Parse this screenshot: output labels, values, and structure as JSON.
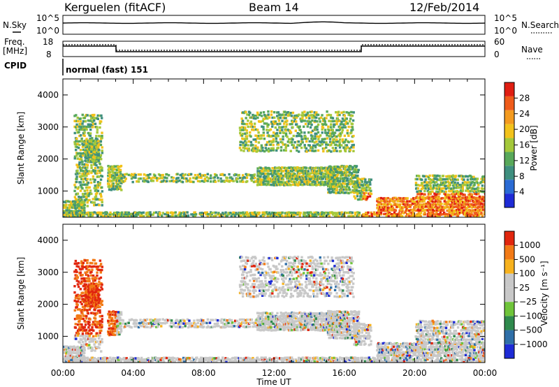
{
  "header": {
    "station": "Kerguelen (fitACF)",
    "beam": "Beam 14",
    "date": "12/Feb/2014"
  },
  "top_panels": {
    "nsky_label": "N.Sky",
    "nsky_left_ticks": [
      "10^5",
      "10^0"
    ],
    "nsearch_label": "N.Search",
    "nsearch_right_ticks": [
      "10^5",
      "10^0"
    ],
    "freq_label": "Freq.",
    "freq_unit": "[MHz]",
    "freq_ticks": [
      "18",
      "8"
    ],
    "nave_label": "Nave",
    "nave_ticks": [
      "60",
      "0"
    ],
    "cpid_label": "CPID",
    "cpid_value": "normal (fast) 151"
  },
  "chart_data": [
    {
      "type": "heatmap",
      "panel": "power",
      "ylabel": "Slant Range [km]",
      "xlabel": "",
      "yticks": [
        "1000",
        "2000",
        "3000",
        "4000"
      ],
      "ylim": [
        180,
        4500
      ],
      "xlim": [
        0,
        24
      ],
      "colorbar": {
        "label": "Power [dB]",
        "ticks": [
          "4",
          "8",
          "12",
          "16",
          "20",
          "24",
          "28"
        ],
        "colors": [
          "#1e2bd6",
          "#2a6bd4",
          "#3f8f7f",
          "#58a85a",
          "#a4c83a",
          "#f2c21b",
          "#f39a1f",
          "#ef5b1a",
          "#e01e12"
        ]
      }
    },
    {
      "type": "heatmap",
      "panel": "velocity",
      "ylabel": "Slant Range [km]",
      "xlabel": "Time UT",
      "yticks": [
        "1000",
        "2000",
        "3000",
        "4000"
      ],
      "xticks": [
        "00:00",
        "04:00",
        "08:00",
        "12:00",
        "16:00",
        "20:00",
        "00:00"
      ],
      "ylim": [
        180,
        4500
      ],
      "xlim": [
        0,
        24
      ],
      "colorbar": {
        "label": "Velocity [m s⁻¹]",
        "ticks": [
          "1000",
          "500",
          "100",
          "25",
          "−25",
          "−100",
          "−500",
          "−1000"
        ],
        "colors": [
          "#1e2bd6",
          "#2f6fa8",
          "#2f8a4d",
          "#6fc43a",
          "#c8c8c8",
          "#c8c8c8",
          "#f7b21e",
          "#f27a16",
          "#e1260e"
        ]
      }
    }
  ]
}
